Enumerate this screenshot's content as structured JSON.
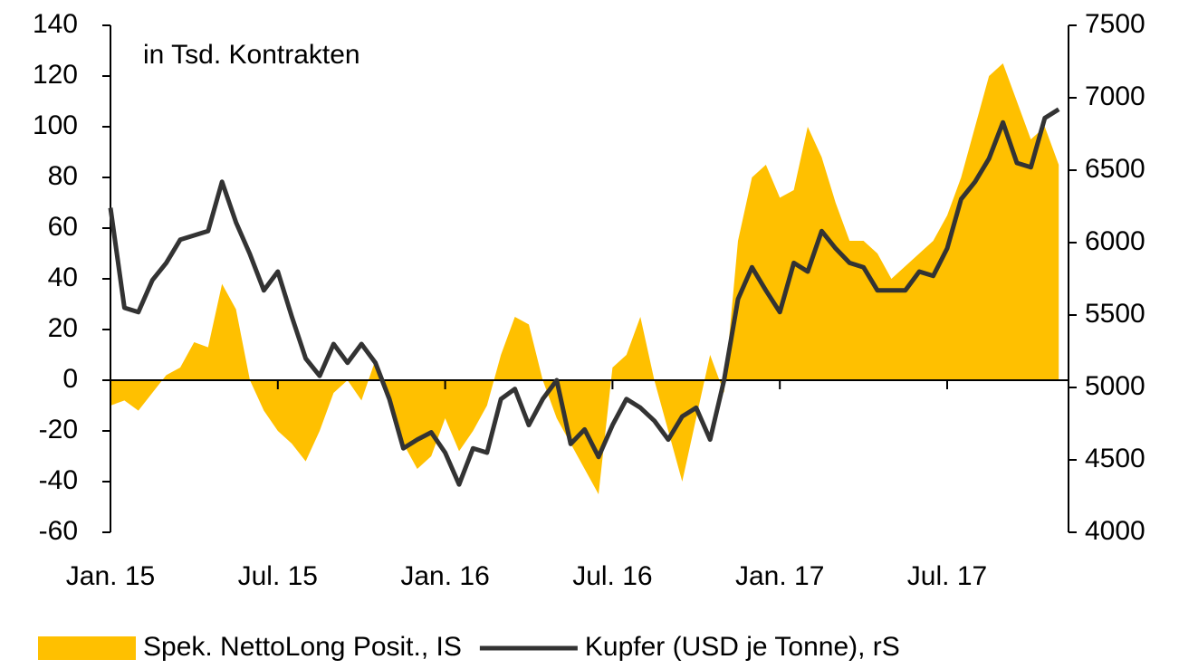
{
  "chart_data": {
    "type": "line",
    "annotation": "in Tsd. Kontrakten",
    "categories": [
      "Jan. 15",
      null,
      null,
      null,
      null,
      null,
      null,
      null,
      null,
      null,
      null,
      null,
      "Jul. 15",
      null,
      null,
      null,
      null,
      null,
      null,
      null,
      null,
      null,
      null,
      null,
      "Jan. 16",
      null,
      null,
      null,
      null,
      null,
      null,
      null,
      null,
      null,
      null,
      null,
      "Jul. 16",
      null,
      null,
      null,
      null,
      null,
      null,
      null,
      null,
      null,
      null,
      null,
      "Jan. 17",
      null,
      null,
      null,
      null,
      null,
      null,
      null,
      null,
      null,
      null,
      null,
      "Jul. 17",
      null,
      null,
      null,
      null,
      null,
      null,
      null,
      null
    ],
    "series": [
      {
        "name": "Spek. NettoLong Posit., IS",
        "type": "area",
        "color": "#ffc000",
        "axis": "y",
        "values": [
          -10,
          -8,
          -12,
          -5,
          2,
          5,
          15,
          13,
          38,
          28,
          0,
          -12,
          -20,
          -25,
          -32,
          -20,
          -5,
          0,
          -8,
          8,
          -10,
          -25,
          -35,
          -30,
          -15,
          -28,
          -20,
          -10,
          10,
          25,
          22,
          0,
          -15,
          -25,
          -35,
          -45,
          5,
          10,
          25,
          0,
          -20,
          -40,
          -15,
          10,
          -5,
          55,
          80,
          85,
          72,
          75,
          100,
          88,
          70,
          55,
          55,
          50,
          40,
          45,
          50,
          55,
          65,
          80,
          100,
          120,
          125,
          110,
          95,
          100,
          85
        ]
      },
      {
        "name": "Kupfer (USD je Tonne), rS",
        "type": "line",
        "color": "#333333",
        "axis": "y2",
        "values": [
          6240,
          5550,
          5520,
          5740,
          5860,
          6020,
          6050,
          6080,
          6420,
          6140,
          5920,
          5670,
          5800,
          5490,
          5200,
          5080,
          5300,
          5170,
          5300,
          5170,
          4920,
          4580,
          4640,
          4690,
          4550,
          4330,
          4580,
          4550,
          4920,
          4990,
          4740,
          4920,
          5050,
          4610,
          4710,
          4520,
          4740,
          4920,
          4860,
          4770,
          4640,
          4800,
          4860,
          4640,
          5050,
          5610,
          5830,
          5670,
          5520,
          5860,
          5800,
          6080,
          5960,
          5860,
          5830,
          5670,
          5670,
          5670,
          5800,
          5770,
          5960,
          6300,
          6420,
          6580,
          6830,
          6550,
          6520,
          6860,
          6920
        ]
      }
    ],
    "ylim": [
      -60,
      140
    ],
    "yticks": [
      -60,
      -40,
      -20,
      0,
      20,
      40,
      60,
      80,
      100,
      120,
      140
    ],
    "y2lim": [
      4000,
      7500
    ],
    "y2ticks": [
      4000,
      4500,
      5000,
      5500,
      6000,
      6500,
      7000,
      7500
    ],
    "legend": "bottom"
  }
}
